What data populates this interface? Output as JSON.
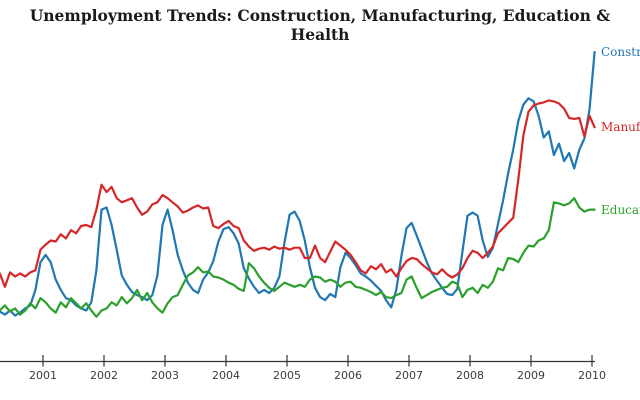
{
  "title": "Unemployment Trends: Construction, Manufacturing, Education & Health",
  "colors": {
    "construction": "#1f77b4",
    "manufacturing": "#d62728",
    "education_health": "#2ca02c",
    "axis": "#333333",
    "tick_label": "#3c3c3c",
    "title": "#1a1a1a",
    "background": "#ffffff"
  },
  "chart_data": {
    "type": "line",
    "title": "Unemployment Trends: Construction, Manufacturing, Education & Health",
    "xlabel": "",
    "ylabel": "",
    "grid": false,
    "y_axis_visible": false,
    "legend_position": "end-of-line labels at right edge (clipped by image border)",
    "x_start_year": 2000.292,
    "x_step_years": 0.083333,
    "x_ticks": [
      2001,
      2002,
      2003,
      2004,
      2005,
      2006,
      2007,
      2008,
      2009,
      2010
    ],
    "x_tick_labels": [
      "2001",
      "2002",
      "2003",
      "2004",
      "2005",
      "2006",
      "2007",
      "2008",
      "2009",
      "2010"
    ],
    "xlim": [
      2000.29,
      2010.1
    ],
    "ylim": [
      0,
      31
    ],
    "series": [
      {
        "name": "Construction",
        "color": "#1f77b4",
        "values": [
          4.9,
          4.6,
          5.0,
          4.5,
          4.8,
          5.2,
          5.5,
          7.0,
          9.7,
          10.4,
          9.7,
          8.0,
          7.0,
          6.2,
          6.0,
          5.5,
          5.2,
          5.0,
          5.8,
          8.9,
          14.8,
          15.0,
          13.3,
          10.9,
          8.4,
          7.5,
          6.8,
          6.5,
          6.3,
          6.0,
          6.5,
          8.4,
          13.3,
          14.8,
          12.8,
          10.4,
          8.9,
          7.7,
          7.0,
          6.7,
          8.0,
          8.7,
          9.8,
          11.7,
          12.9,
          13.1,
          12.5,
          11.5,
          9.1,
          8.1,
          7.3,
          6.7,
          7.0,
          6.7,
          7.2,
          8.3,
          11.6,
          14.3,
          14.6,
          13.7,
          11.8,
          9.2,
          7.2,
          6.3,
          6.0,
          6.6,
          6.3,
          9.2,
          10.6,
          10.1,
          9.4,
          8.6,
          8.3,
          7.9,
          7.4,
          6.9,
          6.0,
          5.3,
          7.0,
          10.3,
          13.0,
          13.5,
          12.3,
          11.0,
          9.7,
          8.6,
          7.9,
          7.2,
          6.6,
          6.5,
          7.1,
          10.7,
          14.2,
          14.5,
          14.2,
          11.8,
          10.2,
          11.1,
          13.4,
          15.7,
          18.3,
          20.6,
          23.4,
          25.0,
          25.6,
          25.3,
          23.9,
          21.8,
          22.4,
          20.1,
          21.2,
          19.5,
          20.3,
          18.8,
          20.6,
          21.7,
          24.5,
          30.1
        ]
      },
      {
        "name": "Manufacturing",
        "color": "#d62728",
        "values": [
          8.6,
          7.3,
          8.7,
          8.3,
          8.6,
          8.3,
          8.7,
          8.9,
          10.9,
          11.4,
          11.8,
          11.7,
          12.4,
          12.0,
          12.8,
          12.5,
          13.2,
          13.3,
          13.1,
          14.8,
          17.2,
          16.5,
          17.0,
          15.9,
          15.5,
          15.7,
          15.9,
          15.0,
          14.3,
          14.6,
          15.3,
          15.5,
          16.2,
          15.9,
          15.5,
          15.1,
          14.5,
          14.7,
          15.0,
          15.2,
          14.9,
          15.0,
          13.2,
          13.0,
          13.4,
          13.7,
          13.2,
          13.0,
          11.8,
          11.2,
          10.8,
          11.0,
          11.1,
          10.9,
          11.2,
          11.0,
          11.1,
          10.9,
          11.1,
          11.1,
          10.1,
          10.1,
          11.3,
          10.1,
          9.7,
          10.7,
          11.7,
          11.3,
          10.9,
          10.4,
          9.7,
          8.9,
          8.6,
          9.3,
          9.0,
          9.5,
          8.7,
          9.0,
          8.3,
          9.1,
          9.8,
          10.1,
          10.0,
          9.5,
          9.1,
          8.7,
          8.5,
          9.0,
          8.5,
          8.2,
          8.5,
          9.1,
          10.1,
          10.8,
          10.6,
          10.1,
          10.6,
          11.2,
          12.5,
          13.0,
          13.5,
          14.0,
          17.7,
          22.0,
          24.3,
          24.9,
          25.1,
          25.2,
          25.4,
          25.3,
          25.1,
          24.6,
          23.7,
          23.6,
          23.7,
          21.9,
          23.9,
          22.8
        ]
      },
      {
        "name": "Education & Health",
        "color": "#2ca02c",
        "values": [
          5.0,
          5.5,
          4.9,
          5.2,
          4.6,
          5.0,
          5.7,
          5.2,
          6.2,
          5.8,
          5.2,
          4.8,
          5.8,
          5.3,
          6.2,
          5.7,
          5.2,
          5.7,
          5.0,
          4.4,
          5.0,
          5.2,
          5.8,
          5.5,
          6.3,
          5.7,
          6.2,
          7.0,
          6.0,
          6.7,
          5.8,
          5.2,
          4.8,
          5.7,
          6.3,
          6.5,
          7.5,
          8.4,
          8.7,
          9.2,
          8.7,
          8.8,
          8.3,
          8.2,
          8.0,
          7.7,
          7.5,
          7.1,
          6.9,
          9.6,
          9.1,
          8.3,
          7.7,
          7.2,
          6.9,
          7.3,
          7.7,
          7.5,
          7.3,
          7.5,
          7.3,
          8.0,
          8.3,
          8.2,
          7.8,
          8.0,
          7.8,
          7.3,
          7.7,
          7.8,
          7.3,
          7.2,
          7.0,
          6.8,
          6.5,
          6.8,
          6.3,
          6.2,
          6.5,
          6.7,
          8.0,
          8.3,
          7.2,
          6.2,
          6.5,
          6.8,
          7.0,
          7.2,
          7.3,
          7.8,
          7.6,
          6.3,
          7.0,
          7.2,
          6.7,
          7.5,
          7.2,
          7.8,
          9.1,
          8.9,
          10.1,
          10.0,
          9.7,
          10.6,
          11.3,
          11.2,
          11.8,
          12.0,
          12.8,
          15.5,
          15.4,
          15.2,
          15.4,
          15.9,
          15.0,
          14.6,
          14.8,
          14.8
        ]
      }
    ]
  }
}
